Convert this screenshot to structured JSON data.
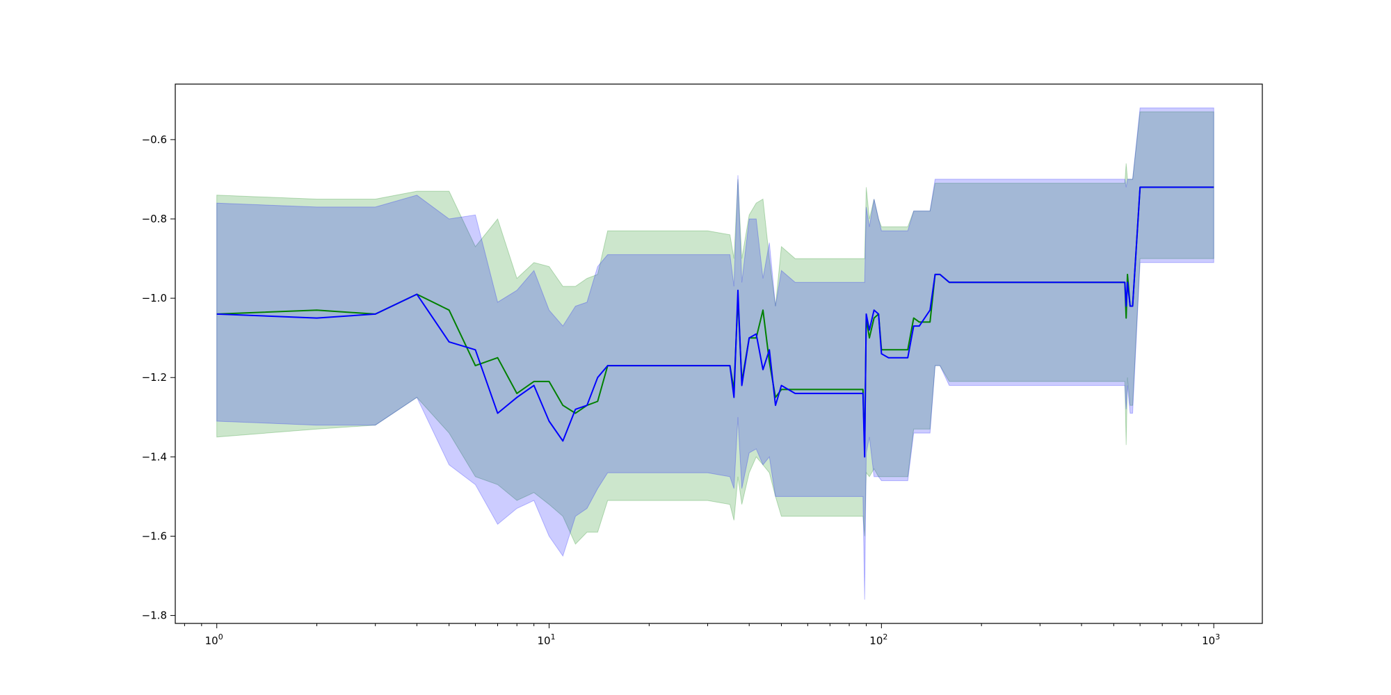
{
  "chart_data": {
    "type": "line",
    "title": "",
    "xlabel": "",
    "ylabel": "",
    "xscale": "log",
    "xlim": [
      0.75,
      1400
    ],
    "ylim": [
      -1.82,
      -0.46
    ],
    "x_ticks": [
      {
        "value": 1,
        "base": "10",
        "exp": "0"
      },
      {
        "value": 10,
        "base": "10",
        "exp": "1"
      },
      {
        "value": 100,
        "base": "10",
        "exp": "2"
      },
      {
        "value": 1000,
        "base": "10",
        "exp": "3"
      }
    ],
    "y_ticks": [
      {
        "value": -0.6,
        "label": "−0.6"
      },
      {
        "value": -0.8,
        "label": "−0.8"
      },
      {
        "value": -1.0,
        "label": "−1.0"
      },
      {
        "value": -1.2,
        "label": "−1.2"
      },
      {
        "value": -1.4,
        "label": "−1.4"
      },
      {
        "value": -1.6,
        "label": "−1.6"
      },
      {
        "value": -1.8,
        "label": "−1.8"
      }
    ],
    "grid": false,
    "legend": "none",
    "series": [
      {
        "color": "#008000",
        "band_color": "#008000",
        "band_opacity": 0.2,
        "x": [
          1,
          2,
          3,
          4,
          5,
          6,
          7,
          8,
          9,
          10,
          11,
          12,
          13,
          14,
          15,
          20,
          25,
          30,
          35,
          36,
          37,
          38,
          40,
          42,
          44,
          46,
          48,
          50,
          55,
          60,
          70,
          80,
          88,
          89,
          90,
          92,
          95,
          98,
          100,
          105,
          110,
          120,
          125,
          130,
          140,
          145,
          150,
          160,
          200,
          300,
          400,
          540,
          545,
          550,
          560,
          570,
          600,
          700,
          800,
          1000
        ],
        "y": [
          -1.04,
          -1.03,
          -1.04,
          -0.99,
          -1.03,
          -1.17,
          -1.15,
          -1.24,
          -1.21,
          -1.21,
          -1.27,
          -1.29,
          -1.27,
          -1.26,
          -1.17,
          -1.17,
          -1.17,
          -1.17,
          -1.17,
          -1.23,
          -1.0,
          -1.21,
          -1.1,
          -1.1,
          -1.03,
          -1.16,
          -1.25,
          -1.23,
          -1.23,
          -1.23,
          -1.23,
          -1.23,
          -1.23,
          -1.38,
          -1.05,
          -1.1,
          -1.05,
          -1.04,
          -1.13,
          -1.13,
          -1.13,
          -1.13,
          -1.05,
          -1.06,
          -1.06,
          -0.94,
          -0.94,
          -0.96,
          -0.96,
          -0.96,
          -0.96,
          -0.96,
          -1.05,
          -0.94,
          -1.02,
          -1.02,
          -0.72,
          -0.72,
          -0.72,
          -0.72
        ],
        "lower": [
          -1.35,
          -1.33,
          -1.32,
          -1.25,
          -1.34,
          -1.45,
          -1.47,
          -1.51,
          -1.49,
          -1.52,
          -1.55,
          -1.62,
          -1.59,
          -1.59,
          -1.51,
          -1.51,
          -1.51,
          -1.51,
          -1.52,
          -1.56,
          -1.45,
          -1.52,
          -1.44,
          -1.4,
          -1.42,
          -1.44,
          -1.5,
          -1.55,
          -1.55,
          -1.55,
          -1.55,
          -1.55,
          -1.55,
          -1.6,
          -1.44,
          -1.45,
          -1.43,
          -1.45,
          -1.45,
          -1.45,
          -1.45,
          -1.45,
          -1.33,
          -1.33,
          -1.33,
          -1.17,
          -1.17,
          -1.21,
          -1.21,
          -1.21,
          -1.21,
          -1.21,
          -1.37,
          -1.2,
          -1.27,
          -1.27,
          -0.9,
          -0.9,
          -0.9,
          -0.9
        ],
        "upper": [
          -0.74,
          -0.75,
          -0.75,
          -0.73,
          -0.73,
          -0.87,
          -0.8,
          -0.95,
          -0.91,
          -0.92,
          -0.97,
          -0.97,
          -0.95,
          -0.94,
          -0.83,
          -0.83,
          -0.83,
          -0.83,
          -0.84,
          -0.9,
          -0.7,
          -0.9,
          -0.79,
          -0.76,
          -0.75,
          -0.9,
          -1.02,
          -0.87,
          -0.9,
          -0.9,
          -0.9,
          -0.9,
          -0.9,
          -0.9,
          -0.72,
          -0.8,
          -0.75,
          -0.8,
          -0.82,
          -0.82,
          -0.82,
          -0.82,
          -0.78,
          -0.78,
          -0.78,
          -0.71,
          -0.71,
          -0.71,
          -0.71,
          -0.71,
          -0.71,
          -0.71,
          -0.66,
          -0.7,
          -0.7,
          -0.7,
          -0.53,
          -0.53,
          -0.53,
          -0.53
        ]
      },
      {
        "color": "#0000ff",
        "band_color": "#0000ff",
        "band_opacity": 0.2,
        "x": [
          1,
          2,
          3,
          4,
          5,
          6,
          7,
          8,
          9,
          10,
          11,
          12,
          13,
          14,
          15,
          20,
          25,
          30,
          35,
          36,
          37,
          38,
          40,
          42,
          44,
          46,
          48,
          50,
          55,
          60,
          70,
          80,
          88,
          89,
          90,
          92,
          95,
          98,
          100,
          105,
          110,
          120,
          125,
          130,
          140,
          145,
          150,
          160,
          200,
          300,
          400,
          540,
          545,
          550,
          560,
          570,
          600,
          700,
          800,
          1000
        ],
        "y": [
          -1.04,
          -1.05,
          -1.04,
          -0.99,
          -1.11,
          -1.13,
          -1.29,
          -1.25,
          -1.22,
          -1.31,
          -1.36,
          -1.28,
          -1.27,
          -1.2,
          -1.17,
          -1.17,
          -1.17,
          -1.17,
          -1.17,
          -1.25,
          -0.98,
          -1.22,
          -1.1,
          -1.09,
          -1.18,
          -1.13,
          -1.27,
          -1.22,
          -1.24,
          -1.24,
          -1.24,
          -1.24,
          -1.24,
          -1.4,
          -1.04,
          -1.08,
          -1.03,
          -1.04,
          -1.14,
          -1.15,
          -1.15,
          -1.15,
          -1.07,
          -1.07,
          -1.03,
          -0.94,
          -0.94,
          -0.96,
          -0.96,
          -0.96,
          -0.96,
          -0.96,
          -1.02,
          -0.96,
          -1.02,
          -1.02,
          -0.72,
          -0.72,
          -0.72,
          -0.72
        ],
        "lower": [
          -1.31,
          -1.32,
          -1.32,
          -1.25,
          -1.42,
          -1.47,
          -1.57,
          -1.53,
          -1.51,
          -1.6,
          -1.65,
          -1.55,
          -1.53,
          -1.48,
          -1.44,
          -1.44,
          -1.44,
          -1.44,
          -1.45,
          -1.48,
          -1.3,
          -1.48,
          -1.39,
          -1.38,
          -1.42,
          -1.4,
          -1.5,
          -1.5,
          -1.5,
          -1.5,
          -1.5,
          -1.5,
          -1.5,
          -1.76,
          -1.39,
          -1.35,
          -1.45,
          -1.45,
          -1.46,
          -1.46,
          -1.46,
          -1.46,
          -1.34,
          -1.34,
          -1.34,
          -1.17,
          -1.17,
          -1.22,
          -1.22,
          -1.22,
          -1.22,
          -1.22,
          -1.28,
          -1.22,
          -1.29,
          -1.29,
          -0.91,
          -0.91,
          -0.91,
          -0.91
        ],
        "upper": [
          -0.76,
          -0.77,
          -0.77,
          -0.74,
          -0.8,
          -0.79,
          -1.01,
          -0.98,
          -0.93,
          -1.03,
          -1.07,
          -1.02,
          -1.01,
          -0.92,
          -0.89,
          -0.89,
          -0.89,
          -0.89,
          -0.89,
          -0.97,
          -0.69,
          -0.96,
          -0.8,
          -0.8,
          -0.95,
          -0.86,
          -1.02,
          -0.93,
          -0.96,
          -0.96,
          -0.96,
          -0.96,
          -0.96,
          -0.96,
          -0.77,
          -0.82,
          -0.75,
          -0.8,
          -0.83,
          -0.83,
          -0.83,
          -0.83,
          -0.78,
          -0.78,
          -0.78,
          -0.7,
          -0.7,
          -0.7,
          -0.7,
          -0.7,
          -0.7,
          -0.7,
          -0.72,
          -0.7,
          -0.7,
          -0.7,
          -0.52,
          -0.52,
          -0.52,
          -0.52
        ]
      }
    ]
  }
}
